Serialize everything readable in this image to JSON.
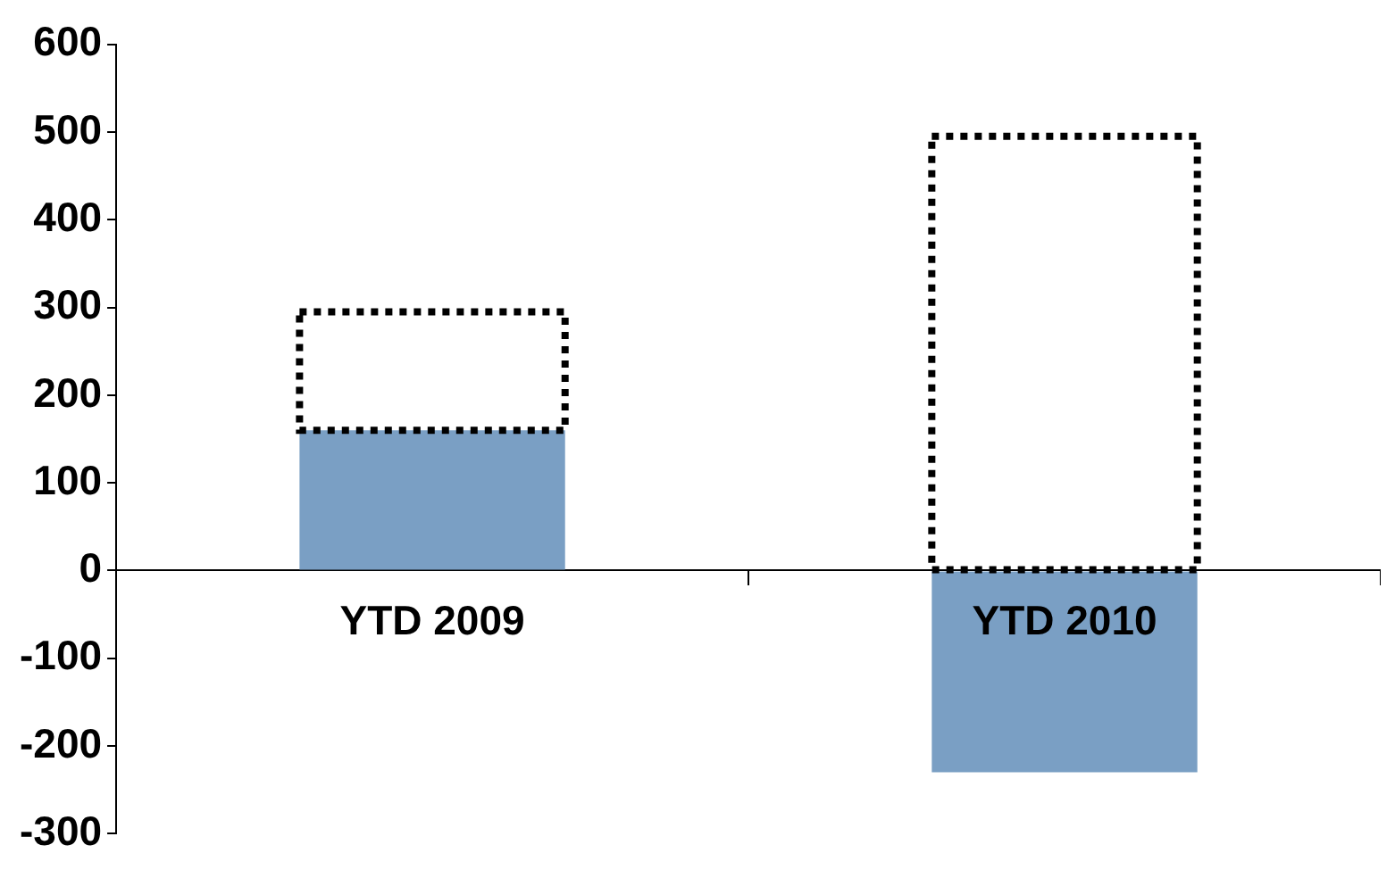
{
  "chart_data": {
    "type": "bar",
    "categories": [
      "YTD 2009",
      "YTD 2010"
    ],
    "series": [
      {
        "color": "#7a9fc4",
        "values": [
          160,
          -230
        ]
      },
      {
        "color": "#000000",
        "values": [
          135,
          495
        ],
        "base": [
          160,
          0
        ],
        "line_style": "dotted"
      }
    ],
    "ylim": [
      -300,
      600
    ],
    "yticks": [
      -300,
      -200,
      -100,
      0,
      100,
      200,
      300,
      400,
      500,
      600
    ],
    "grid": false,
    "legend": false
  }
}
